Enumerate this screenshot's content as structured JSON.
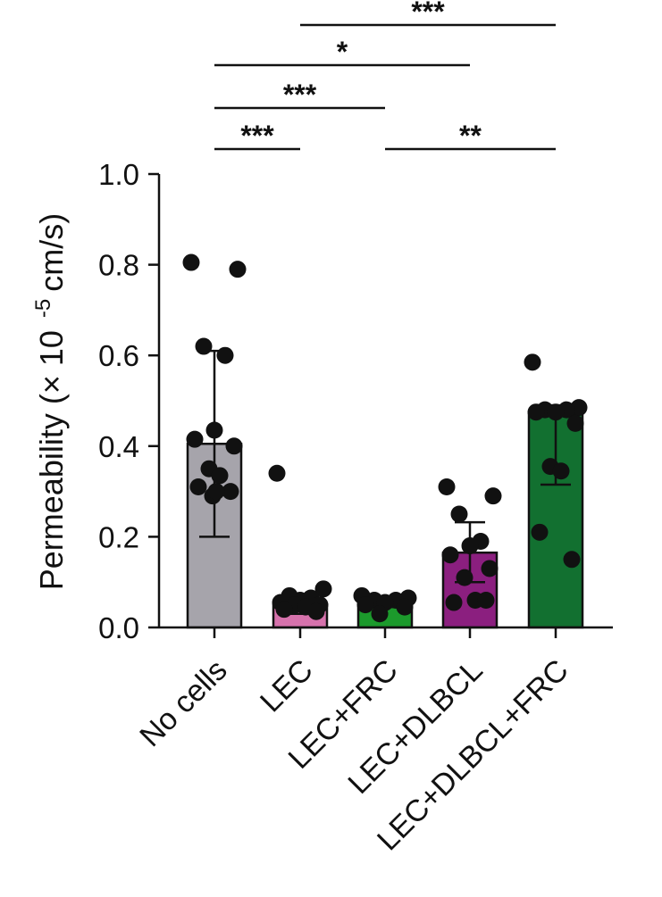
{
  "chart_data": {
    "type": "bar",
    "ylabel": "Permeability (× 10",
    "ylabel_superscript": "-5",
    "ylabel_unit": "cm/s)",
    "ylim": [
      0,
      1.0
    ],
    "yticks": [
      "0.0",
      "0.2",
      "0.4",
      "0.6",
      "0.8",
      "1.0"
    ],
    "grid": false,
    "categories": [
      "No cells",
      "LEC",
      "LEC+FRC",
      "LEC+DLBCL",
      "LEC+DLBCL+FRC"
    ],
    "colors": [
      "#a6a4ab",
      "#d672ac",
      "#1c9a2c",
      "#8b1f7f",
      "#127030"
    ],
    "values": [
      0.405,
      0.05,
      0.055,
      0.165,
      0.47
    ],
    "error": [
      {
        "low": 0.2,
        "high": 0.61
      },
      {
        "low": 0.03,
        "high": 0.07
      },
      {
        "low": 0.045,
        "high": 0.068
      },
      {
        "low": 0.1,
        "high": 0.232
      },
      {
        "low": 0.315,
        "high": 0.49
      }
    ],
    "points": [
      [
        0.805,
        0.79,
        0.62,
        0.6,
        0.435,
        0.415,
        0.4,
        0.35,
        0.335,
        0.31,
        0.3,
        0.29,
        0.3
      ],
      [
        0.34,
        0.085,
        0.07,
        0.065,
        0.06,
        0.055,
        0.05,
        0.05,
        0.045,
        0.04,
        0.035
      ],
      [
        0.07,
        0.065,
        0.06,
        0.06,
        0.055,
        0.05,
        0.045,
        0.03
      ],
      [
        0.31,
        0.29,
        0.25,
        0.19,
        0.18,
        0.16,
        0.13,
        0.11,
        0.06,
        0.055,
        0.06
      ],
      [
        0.585,
        0.485,
        0.48,
        0.48,
        0.475,
        0.475,
        0.45,
        0.355,
        0.345,
        0.21,
        0.15
      ]
    ],
    "significance": [
      {
        "from": 1,
        "to": 4,
        "label": "***"
      },
      {
        "from": 0,
        "to": 3,
        "label": "*"
      },
      {
        "from": 0,
        "to": 2,
        "label": "***"
      },
      {
        "from": 0,
        "to": 1,
        "label": "***"
      },
      {
        "from": 2,
        "to": 4,
        "label": "**"
      }
    ]
  }
}
